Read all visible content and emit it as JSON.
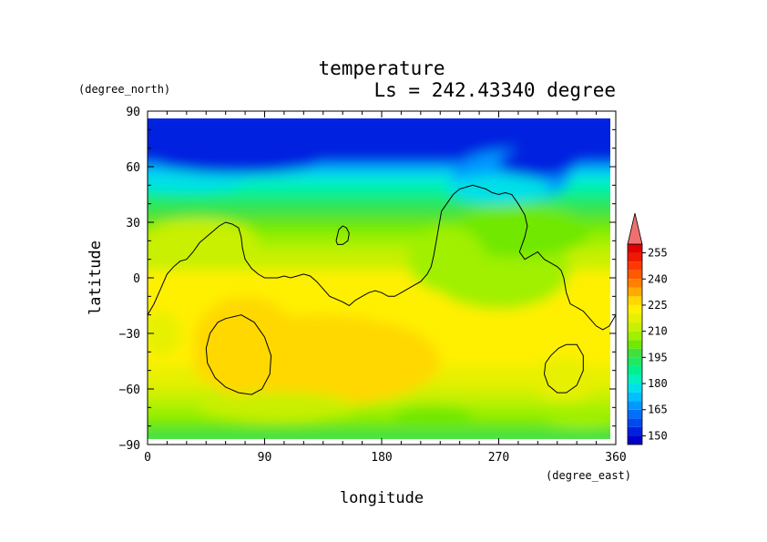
{
  "chart_data": {
    "type": "heatmap",
    "title": "temperature",
    "subtitle": "Ls = 242.43340 degree",
    "xlabel": "longitude",
    "ylabel": "latitude",
    "x_unit": "(degree_east)",
    "y_unit": "(degree_north)",
    "xlim": [
      0,
      360
    ],
    "ylim": [
      -90,
      90
    ],
    "x_ticks": [
      "0",
      "90",
      "180",
      "270",
      "360"
    ],
    "y_ticks": [
      "90",
      "60",
      "30",
      "0",
      "−30",
      "−60",
      "−90"
    ],
    "x_tick_values": [
      0,
      90,
      180,
      270,
      360
    ],
    "y_tick_values": [
      90,
      60,
      30,
      0,
      -30,
      -60,
      -90
    ],
    "data_lat_range": [
      -86,
      86
    ],
    "colorbar": {
      "levels": [
        145,
        150,
        155,
        160,
        165,
        170,
        175,
        180,
        185,
        190,
        195,
        200,
        205,
        210,
        215,
        220,
        225,
        230,
        235,
        240,
        245,
        250,
        255,
        260
      ],
      "colors": [
        "#0000c8",
        "#0020e0",
        "#0048f0",
        "#0070f8",
        "#0098ff",
        "#00c0ff",
        "#00e0e8",
        "#00f0c0",
        "#00f090",
        "#20e860",
        "#40e040",
        "#70e800",
        "#a0f000",
        "#c8f000",
        "#e6f000",
        "#fff000",
        "#ffd800",
        "#ffaa00",
        "#ff8000",
        "#ff5a00",
        "#ff3800",
        "#f01800",
        "#e00000"
      ],
      "labels": [
        "255",
        "240",
        "225",
        "210",
        "195",
        "180",
        "165",
        "150"
      ],
      "label_values": [
        255,
        240,
        225,
        210,
        195,
        180,
        165,
        150
      ],
      "extend": "max",
      "extend_color": "#f07070"
    },
    "contours": [
      {
        "name": "topography-1",
        "points": [
          [
            0,
            -20
          ],
          [
            5,
            -14
          ],
          [
            10,
            -6
          ],
          [
            15,
            2
          ],
          [
            20,
            6
          ],
          [
            25,
            9
          ],
          [
            30,
            10
          ],
          [
            35,
            14
          ],
          [
            40,
            19
          ],
          [
            45,
            22
          ],
          [
            50,
            25
          ],
          [
            55,
            28
          ],
          [
            60,
            30
          ],
          [
            65,
            29
          ],
          [
            70,
            27
          ],
          [
            72,
            22
          ],
          [
            73,
            16
          ],
          [
            75,
            10
          ],
          [
            80,
            5
          ],
          [
            85,
            2
          ],
          [
            90,
            0
          ],
          [
            100,
            0
          ],
          [
            105,
            1
          ],
          [
            110,
            0
          ],
          [
            115,
            1
          ],
          [
            120,
            2
          ],
          [
            125,
            1
          ],
          [
            130,
            -2
          ],
          [
            135,
            -6
          ],
          [
            140,
            -10
          ],
          [
            150,
            -13
          ],
          [
            155,
            -15
          ],
          [
            160,
            -12
          ],
          [
            165,
            -10
          ],
          [
            170,
            -8
          ],
          [
            175,
            -7
          ],
          [
            180,
            -8
          ],
          [
            185,
            -10
          ],
          [
            190,
            -10
          ],
          [
            195,
            -8
          ],
          [
            200,
            -6
          ],
          [
            205,
            -4
          ],
          [
            210,
            -2
          ],
          [
            215,
            2
          ],
          [
            218,
            6
          ],
          [
            220,
            12
          ],
          [
            222,
            20
          ],
          [
            224,
            28
          ],
          [
            226,
            36
          ],
          [
            230,
            40
          ],
          [
            235,
            45
          ],
          [
            240,
            48
          ],
          [
            245,
            49
          ],
          [
            250,
            50
          ],
          [
            255,
            49
          ],
          [
            260,
            48
          ],
          [
            265,
            46
          ],
          [
            270,
            45
          ],
          [
            275,
            46
          ],
          [
            280,
            45
          ],
          [
            285,
            40
          ],
          [
            290,
            34
          ],
          [
            292,
            28
          ],
          [
            290,
            22
          ],
          [
            288,
            18
          ],
          [
            286,
            14
          ],
          [
            290,
            10
          ],
          [
            295,
            12
          ],
          [
            300,
            14
          ],
          [
            305,
            10
          ],
          [
            310,
            8
          ],
          [
            315,
            6
          ],
          [
            318,
            4
          ],
          [
            320,
            0
          ],
          [
            322,
            -8
          ],
          [
            325,
            -14
          ],
          [
            330,
            -16
          ],
          [
            335,
            -18
          ],
          [
            340,
            -22
          ],
          [
            345,
            -26
          ],
          [
            350,
            -28
          ],
          [
            355,
            -26
          ],
          [
            360,
            -20
          ]
        ]
      },
      {
        "name": "topography-2",
        "points": [
          [
            145,
            20
          ],
          [
            147,
            26
          ],
          [
            150,
            28
          ],
          [
            153,
            27
          ],
          [
            155,
            24
          ],
          [
            154,
            20
          ],
          [
            150,
            18
          ],
          [
            146,
            18
          ],
          [
            145,
            20
          ]
        ]
      },
      {
        "name": "topography-3",
        "points": [
          [
            60,
            -22
          ],
          [
            72,
            -20
          ],
          [
            82,
            -24
          ],
          [
            90,
            -32
          ],
          [
            95,
            -42
          ],
          [
            94,
            -52
          ],
          [
            88,
            -60
          ],
          [
            80,
            -63
          ],
          [
            70,
            -62
          ],
          [
            60,
            -59
          ],
          [
            52,
            -54
          ],
          [
            46,
            -46
          ],
          [
            45,
            -38
          ],
          [
            48,
            -30
          ],
          [
            54,
            -24
          ],
          [
            60,
            -22
          ]
        ]
      },
      {
        "name": "topography-4",
        "points": [
          [
            322,
            -36
          ],
          [
            330,
            -36
          ],
          [
            335,
            -42
          ],
          [
            335,
            -50
          ],
          [
            330,
            -58
          ],
          [
            322,
            -62
          ],
          [
            315,
            -62
          ],
          [
            308,
            -58
          ],
          [
            305,
            -52
          ],
          [
            306,
            -46
          ],
          [
            310,
            -42
          ],
          [
            316,
            -38
          ],
          [
            322,
            -36
          ]
        ]
      }
    ]
  }
}
